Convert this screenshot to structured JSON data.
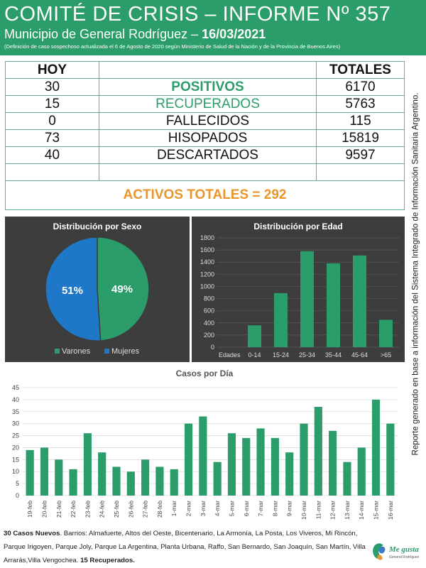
{
  "header": {
    "title": "COMITÉ DE CRISIS – INFORME Nº 357",
    "subtitle_prefix": "Municipio de General Rodríguez – ",
    "subtitle_date": "16/03/2021",
    "note": "(Definición de caso sospechoso actualizada el 6 de Agosto de 2020 según Ministerio de Salud de la Nación y de la Provincia de Buenos Aires)"
  },
  "table": {
    "col_today": "HOY",
    "col_totals": "TOTALES",
    "rows": [
      {
        "today": "30",
        "label": "POSITIVOS",
        "total": "6170"
      },
      {
        "today": "15",
        "label": "RECUPERADOS",
        "total": "5763"
      },
      {
        "today": "0",
        "label": "FALLECIDOS",
        "total": "115"
      },
      {
        "today": "73",
        "label": "HISOPADOS",
        "total": "15819"
      },
      {
        "today": "40",
        "label": "DESCARTADOS",
        "total": "9597"
      }
    ],
    "activos": "ACTIVOS TOTALES = 292"
  },
  "sidebar_text": "Reporte generado en base a información del Sistema Integrado de Información Sanitaria Argentino.",
  "chart_data": [
    {
      "type": "pie",
      "title": "Distribución por Sexo",
      "labels": [
        "Varones",
        "Mujeres"
      ],
      "values": [
        49,
        51
      ],
      "value_labels": [
        "49%",
        "51%"
      ],
      "colors": [
        "#2a9d6a",
        "#1f77c8"
      ],
      "legend": "bottom"
    },
    {
      "type": "bar",
      "title": "Distribución por Edad",
      "xlabel": "Edades",
      "categories": [
        "0-14",
        "15-24",
        "25-34",
        "35-44",
        "45-64",
        ">65"
      ],
      "values": [
        360,
        890,
        1580,
        1380,
        1510,
        450
      ],
      "ylim": [
        0,
        1800
      ],
      "yticks": [
        0,
        200,
        400,
        600,
        800,
        1000,
        1200,
        1400,
        1600,
        1800
      ],
      "color": "#2a9d6a",
      "grid": true
    },
    {
      "type": "bar",
      "title": "Casos por Día",
      "categories": [
        "19-feb",
        "20-feb",
        "21-feb",
        "22-feb",
        "23-feb",
        "24-feb",
        "25-feb",
        "26-feb",
        "27-feb",
        "28-feb",
        "1-mar",
        "2-mar",
        "3-mar",
        "4-mar",
        "5-mar",
        "6-mar",
        "7-mar",
        "8-mar",
        "9-mar",
        "10-mar",
        "11-mar",
        "12-mar",
        "13-mar",
        "14-mar",
        "15-mar",
        "16-mar"
      ],
      "values": [
        19,
        20,
        15,
        11,
        26,
        18,
        12,
        10,
        15,
        12,
        11,
        30,
        33,
        14,
        26,
        24,
        28,
        24,
        18,
        30,
        37,
        27,
        14,
        20,
        40,
        30
      ],
      "ylim": [
        0,
        45
      ],
      "yticks": [
        0,
        5,
        10,
        15,
        20,
        25,
        30,
        35,
        40,
        45
      ],
      "color": "#2a9d6a",
      "grid": true
    }
  ],
  "footer": {
    "new_cases": "30 Casos Nuevos",
    "neighborhoods": ". Barrios: Almafuerte, Altos del Oeste, Bicentenario, La Armonía, La Posta, Los Viveros, Mi Rincón, Parque Irigoyen, Parque Joly, Parque La Argentina, Planta Urbana, Raffo, San Bernardo, San Joaquín, San Martín, Villa Arrarás,Villa Vengochea. ",
    "recovered": "15 Recuperados."
  },
  "logo": {
    "name": "Me gusta",
    "sub": "General Rodríguez"
  }
}
